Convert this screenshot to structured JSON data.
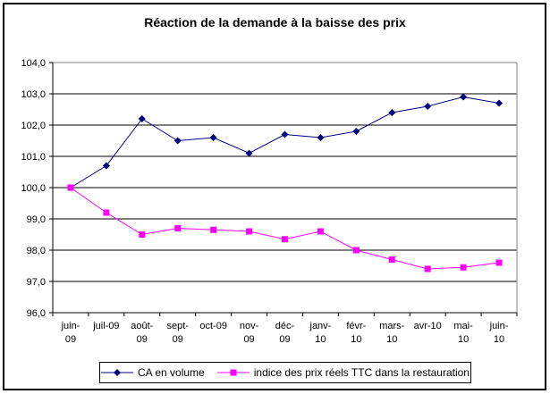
{
  "chart_data": {
    "type": "line",
    "title": "Réaction de la demande à la baisse des prix",
    "categories": [
      "juin-09",
      "juil-09",
      "août-09",
      "sept-09",
      "oct-09",
      "nov-09",
      "déc-09",
      "janv-10",
      "févr-10",
      "mars-10",
      "avr-10",
      "mai-10",
      "juin-10"
    ],
    "category_label_lines": [
      [
        "juin-",
        "09"
      ],
      [
        "juil-09"
      ],
      [
        "août-",
        "09"
      ],
      [
        "sept-",
        "09"
      ],
      [
        "oct-09"
      ],
      [
        "nov-",
        "09"
      ],
      [
        "déc-",
        "09"
      ],
      [
        "janv-",
        "10"
      ],
      [
        "févr-",
        "10"
      ],
      [
        "mars-",
        "10"
      ],
      [
        "avr-10"
      ],
      [
        "mai-",
        "10"
      ],
      [
        "juin-",
        "10"
      ]
    ],
    "series": [
      {
        "name": "CA en volume",
        "color": "#000080",
        "marker": "diamond",
        "values": [
          100.0,
          100.7,
          102.2,
          101.5,
          101.6,
          101.1,
          101.7,
          101.6,
          101.8,
          102.4,
          102.6,
          102.9,
          102.7
        ]
      },
      {
        "name": "indice des prix réels TTC dans la restauration",
        "color": "#FF00FF",
        "marker": "square",
        "values": [
          100.0,
          99.2,
          98.5,
          98.7,
          98.65,
          98.6,
          98.35,
          98.6,
          98.0,
          97.7,
          97.4,
          97.45,
          97.6
        ]
      }
    ],
    "ylim": [
      96.0,
      104.0
    ],
    "ytick_step": 1.0,
    "ytick_labels": [
      "96,0",
      "97,0",
      "98,0",
      "99,0",
      "100,0",
      "101,0",
      "102,0",
      "103,0",
      "104,0"
    ],
    "grid": true,
    "grid_color": "#000000",
    "plot_border_color": "#848284",
    "legend_position": "bottom"
  }
}
